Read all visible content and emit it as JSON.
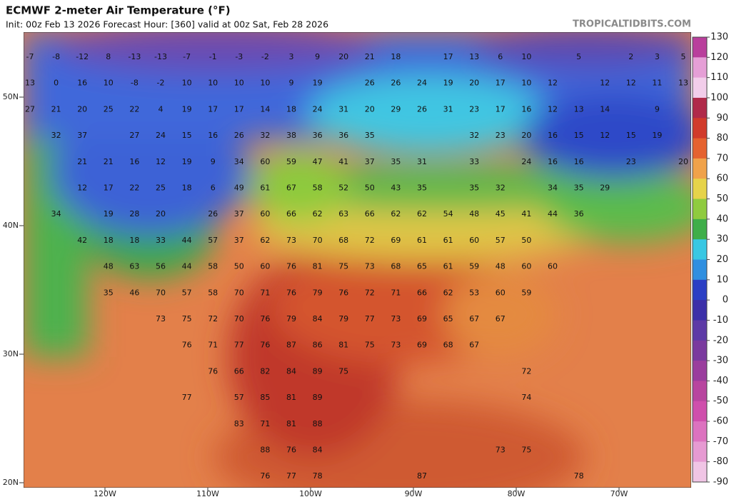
{
  "header": {
    "title": "ECMWF 2-meter Air Temperature (°F)",
    "subtitle": "Init: 00z Feb 13 2026   Forecast Hour: [360]   valid at 00z Sat, Feb 28 2026",
    "brand": "TROPICALTIDBITS.COM"
  },
  "map": {
    "lat_labels": [
      "50N",
      "40N",
      "30N",
      "20N"
    ],
    "lon_labels": [
      "120W",
      "110W",
      "100W",
      "90W",
      "80W",
      "70W"
    ],
    "rows": [
      [
        -7,
        -8,
        -12,
        8,
        -13,
        -13,
        -7,
        -1,
        -3,
        -2,
        3,
        9,
        20,
        21,
        18,
        null,
        17,
        13,
        6,
        10,
        null,
        5,
        null,
        2,
        3,
        5
      ],
      [
        13,
        0,
        16,
        10,
        -8,
        -2,
        10,
        10,
        10,
        10,
        9,
        19,
        null,
        26,
        26,
        24,
        19,
        20,
        17,
        10,
        12,
        null,
        12,
        12,
        11,
        13
      ],
      [
        27,
        21,
        20,
        25,
        22,
        4,
        19,
        17,
        17,
        14,
        18,
        24,
        31,
        20,
        29,
        26,
        31,
        23,
        17,
        16,
        12,
        13,
        14,
        null,
        9,
        null
      ],
      [
        null,
        32,
        37,
        null,
        27,
        24,
        15,
        16,
        26,
        32,
        38,
        36,
        36,
        35,
        null,
        null,
        null,
        32,
        23,
        20,
        16,
        15,
        12,
        15,
        19,
        null
      ],
      [
        null,
        null,
        21,
        21,
        16,
        12,
        19,
        9,
        34,
        60,
        59,
        47,
        41,
        37,
        35,
        31,
        null,
        33,
        null,
        24,
        16,
        16,
        null,
        23,
        null,
        20
      ],
      [
        null,
        null,
        12,
        17,
        22,
        25,
        18,
        6,
        49,
        61,
        67,
        58,
        52,
        50,
        43,
        35,
        null,
        35,
        32,
        null,
        34,
        35,
        29,
        null,
        null,
        null
      ],
      [
        null,
        34,
        null,
        19,
        28,
        20,
        null,
        26,
        37,
        60,
        66,
        62,
        63,
        66,
        62,
        62,
        54,
        48,
        45,
        41,
        44,
        36,
        null,
        null,
        null,
        null
      ],
      [
        null,
        null,
        42,
        18,
        18,
        33,
        44,
        57,
        37,
        62,
        73,
        70,
        68,
        72,
        69,
        61,
        61,
        60,
        57,
        50,
        null,
        null,
        null,
        null,
        null,
        null
      ],
      [
        null,
        null,
        null,
        48,
        63,
        56,
        44,
        58,
        50,
        60,
        76,
        81,
        75,
        73,
        68,
        65,
        61,
        59,
        48,
        60,
        60,
        null,
        null,
        null,
        null,
        null
      ],
      [
        null,
        null,
        null,
        35,
        46,
        70,
        57,
        58,
        70,
        71,
        76,
        79,
        76,
        72,
        71,
        66,
        62,
        53,
        60,
        59,
        null,
        null,
        null,
        null,
        null,
        null
      ],
      [
        null,
        null,
        null,
        null,
        null,
        73,
        75,
        72,
        70,
        76,
        79,
        84,
        79,
        77,
        73,
        69,
        65,
        67,
        67,
        null,
        null,
        null,
        null,
        null,
        null,
        null
      ],
      [
        null,
        null,
        null,
        null,
        null,
        null,
        76,
        71,
        77,
        76,
        87,
        86,
        81,
        75,
        73,
        69,
        68,
        67,
        null,
        null,
        null,
        null,
        null,
        null,
        null,
        null
      ],
      [
        null,
        null,
        null,
        null,
        null,
        null,
        null,
        76,
        66,
        82,
        84,
        89,
        75,
        null,
        null,
        null,
        null,
        null,
        null,
        72,
        null,
        null,
        null,
        null,
        null,
        null
      ],
      [
        null,
        null,
        null,
        null,
        null,
        null,
        77,
        null,
        57,
        85,
        81,
        89,
        null,
        null,
        null,
        null,
        null,
        null,
        null,
        74,
        null,
        null,
        null,
        null,
        null,
        null
      ],
      [
        null,
        null,
        null,
        null,
        null,
        null,
        null,
        null,
        83,
        71,
        81,
        88,
        null,
        null,
        null,
        null,
        null,
        null,
        null,
        null,
        null,
        null,
        null,
        null,
        null,
        null
      ],
      [
        null,
        null,
        null,
        null,
        null,
        null,
        null,
        null,
        null,
        88,
        76,
        84,
        null,
        null,
        null,
        null,
        null,
        null,
        73,
        75,
        null,
        null,
        null,
        null,
        null,
        null
      ],
      [
        null,
        null,
        null,
        null,
        null,
        null,
        null,
        null,
        null,
        76,
        77,
        78,
        null,
        null,
        null,
        87,
        null,
        null,
        null,
        null,
        null,
        78,
        null,
        null,
        null,
        null
      ]
    ]
  },
  "colorbar": {
    "ticks": [
      130,
      120,
      110,
      100,
      90,
      80,
      70,
      60,
      50,
      40,
      30,
      20,
      10,
      0,
      -10,
      -20,
      -30,
      -40,
      -50,
      -60,
      -70,
      -80,
      -90
    ],
    "colors": [
      "#b93f9c",
      "#e59fd6",
      "#f2cdea",
      "#b02a4a",
      "#d13b2b",
      "#e5622f",
      "#f0a24a",
      "#e6d34a",
      "#8fcb3f",
      "#3fae49",
      "#38c7e3",
      "#2f8fe0",
      "#2b3fc4",
      "#3b2fa8",
      "#5d3aa6",
      "#7a3a9e",
      "#9a3d9d",
      "#b8459f",
      "#cf4fac",
      "#dc72bf",
      "#e69ad2",
      "#f0c5e5"
    ]
  }
}
